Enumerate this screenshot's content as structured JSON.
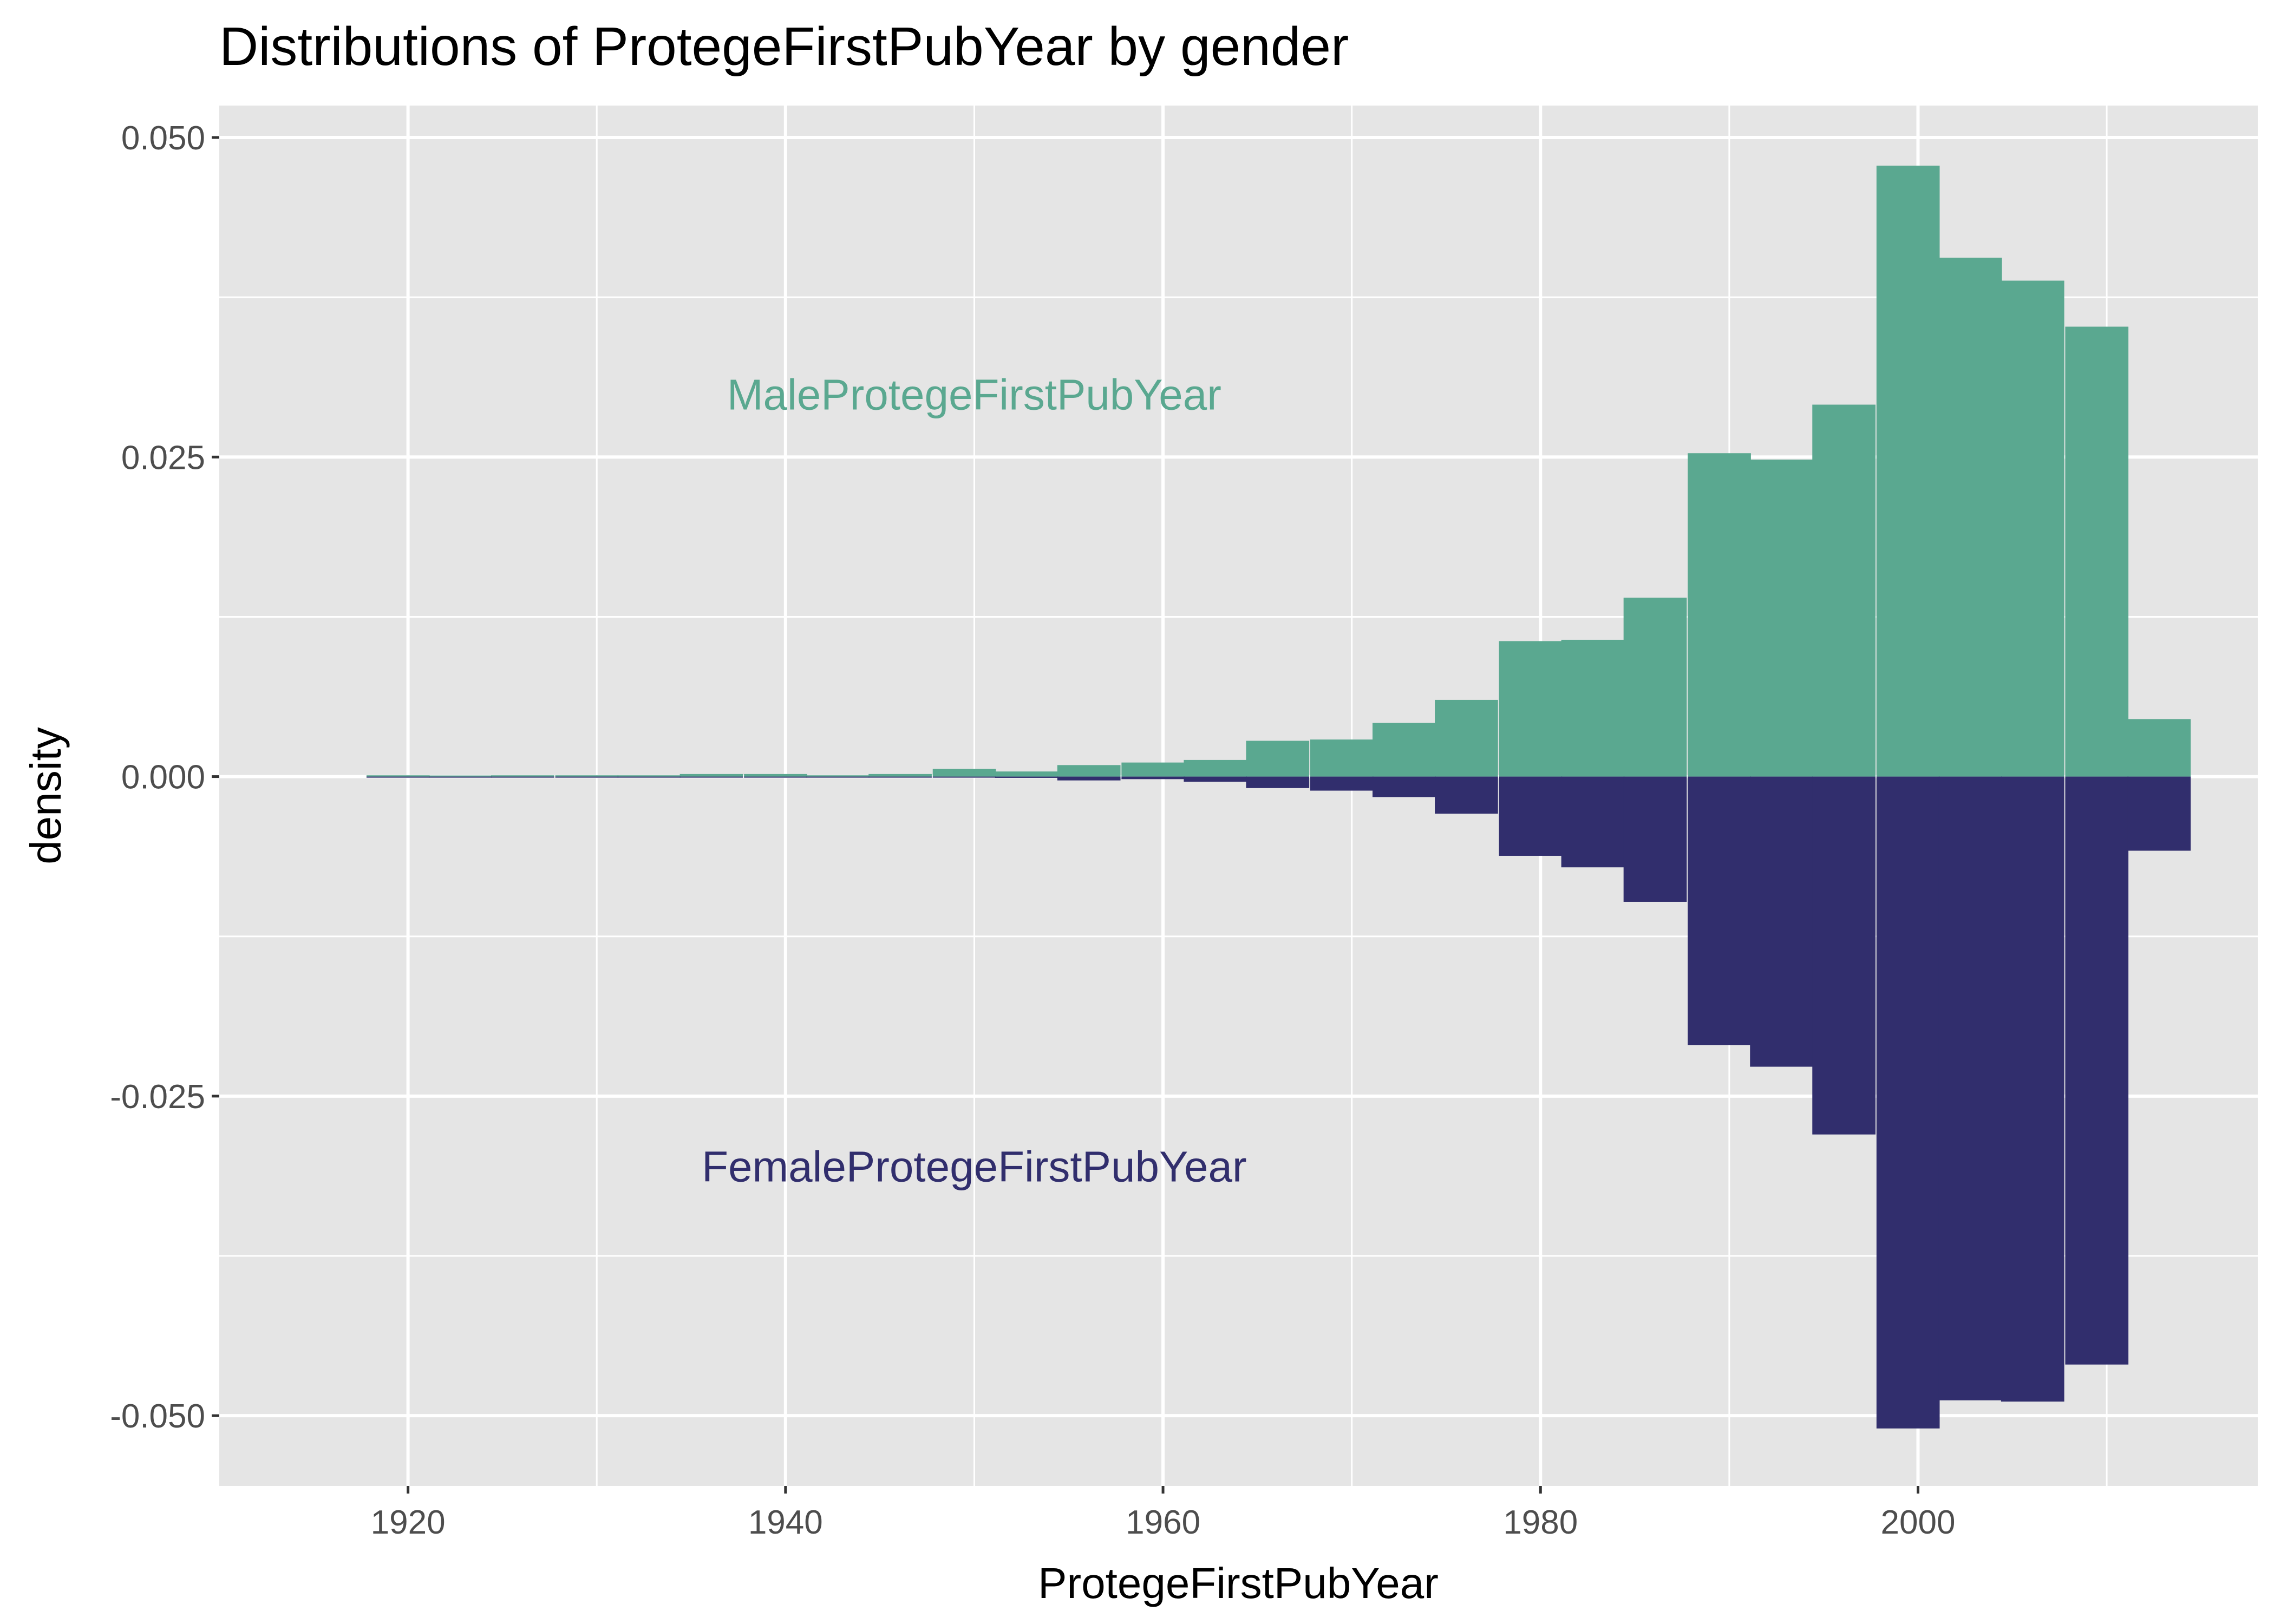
{
  "chart_data": {
    "type": "bar",
    "subtype": "mirrored-histogram",
    "title": "Distributions of ProtegeFirstPubYear by gender",
    "xlabel": "ProtegeFirstPubYear",
    "ylabel": "density",
    "xlim": [
      1910,
      2018
    ],
    "ylim": [
      -0.0555,
      0.0525
    ],
    "x_ticks": [
      1920,
      1940,
      1960,
      1980,
      2000
    ],
    "y_ticks": [
      0.05,
      0.025,
      0.0,
      -0.025,
      -0.05
    ],
    "y_tick_labels": [
      "0.050",
      "0.025",
      "0.000",
      "-0.025",
      "-0.050"
    ],
    "grid": true,
    "bin_width": 3.33,
    "bin_starts": [
      1917.8,
      1921.1,
      1924.4,
      1927.8,
      1931.1,
      1934.4,
      1937.8,
      1941.1,
      1944.4,
      1947.8,
      1951.1,
      1954.4,
      1957.8,
      1961.1,
      1964.4,
      1967.8,
      1971.1,
      1974.4,
      1977.8,
      1981.1,
      1984.4,
      1987.8,
      1991.1,
      1994.4,
      1997.8,
      2001.1,
      2004.4,
      2007.8,
      2011.1
    ],
    "series": [
      {
        "name": "MaleProtegeFirstPubYear",
        "color": "#5aa890",
        "values": [
          0.0001,
          0.0,
          0.0001,
          0.0001,
          0.0001,
          0.0002,
          0.0002,
          0.0001,
          0.0002,
          0.0006,
          0.0004,
          0.0009,
          0.0011,
          0.0013,
          0.0028,
          0.0029,
          0.0042,
          0.006,
          0.0106,
          0.0107,
          0.014,
          0.0253,
          0.0248,
          0.0291,
          0.0478,
          0.0406,
          0.0388,
          0.0352,
          0.0045
        ]
      },
      {
        "name": "FemaleProtegeFirstPubYear",
        "color": "#312e6d",
        "values": [
          0.0,
          0.0,
          0.0,
          0.0,
          0.0,
          0.0,
          0.0,
          0.0,
          0.0,
          0.0,
          -0.0001,
          -0.0003,
          -0.0002,
          -0.0004,
          -0.0009,
          -0.0011,
          -0.0016,
          -0.0029,
          -0.0062,
          -0.0071,
          -0.0098,
          -0.021,
          -0.0227,
          -0.028,
          -0.051,
          -0.0488,
          -0.0489,
          -0.046,
          -0.0058
        ]
      }
    ],
    "annotations": [
      {
        "text": "MaleProtegeFirstPubYear",
        "x": 1950,
        "y": 0.0299,
        "series": 0
      },
      {
        "text": "FemaleProtegeFirstPubYear",
        "x": 1950,
        "y": -0.0305,
        "series": 1
      }
    ]
  }
}
